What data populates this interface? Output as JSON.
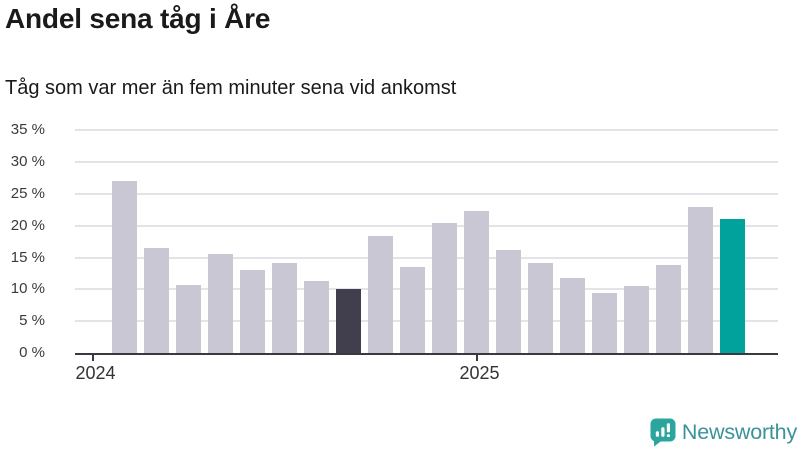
{
  "header": {
    "title": "Andel sena tåg i Åre",
    "subtitle": "Tåg som var mer än fem minuter sena vid ankomst"
  },
  "chart_data": {
    "type": "bar",
    "title": "Andel sena tåg i Åre",
    "subtitle": "Tåg som var mer än fem minuter sena vid ankomst",
    "unit": "%",
    "values": [
      27.0,
      16.5,
      10.7,
      15.5,
      13.0,
      14.2,
      11.3,
      10.0,
      18.4,
      13.6,
      20.4,
      22.3,
      16.2,
      14.2,
      11.8,
      9.4,
      10.5,
      13.8,
      22.9,
      21.1
    ],
    "bar_roles": [
      "normal",
      "normal",
      "normal",
      "normal",
      "normal",
      "normal",
      "normal",
      "highlight_dark",
      "normal",
      "normal",
      "normal",
      "normal",
      "normal",
      "normal",
      "normal",
      "normal",
      "normal",
      "normal",
      "normal",
      "highlight_teal"
    ],
    "y_ticks": [
      {
        "label": "35 %",
        "value": 35
      },
      {
        "label": "30 %",
        "value": 30
      },
      {
        "label": "25 %",
        "value": 25
      },
      {
        "label": "20 %",
        "value": 20
      },
      {
        "label": "15 %",
        "value": 15
      },
      {
        "label": "10 %",
        "value": 10
      },
      {
        "label": "5 %",
        "value": 5
      },
      {
        "label": "0 %",
        "value": 0
      }
    ],
    "x_ticks": [
      {
        "label": "2024",
        "slot": -1
      },
      {
        "label": "2025",
        "slot": 11
      }
    ],
    "ylim": [
      0,
      35
    ],
    "grid": true,
    "legend_position": "none",
    "colors": {
      "normal": "#c9c7d3",
      "highlight_dark": "#413e4e",
      "highlight_teal": "#00a29b",
      "gridline": "#e4e3e7",
      "axis": "#3a393f"
    }
  },
  "footer": {
    "brand": "Newsworthy",
    "logo_icon": "speech-bubble-bar-chart-icon",
    "logo_color": "#2ba59e",
    "text_color": "#3a929b"
  }
}
